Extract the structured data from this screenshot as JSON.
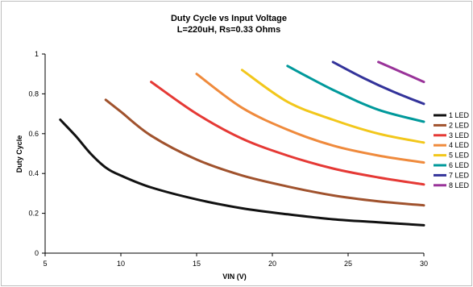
{
  "chart_data": {
    "type": "line",
    "title": "Duty Cycle vs Input Voltage",
    "subtitle": "L=220uH, Rs=0.33 Ohms",
    "xlabel": "VIN (V)",
    "ylabel": "Duty Cycle",
    "xlim": [
      5,
      30
    ],
    "ylim": [
      0,
      1
    ],
    "xticks": [
      "5",
      "10",
      "15",
      "20",
      "25",
      "30"
    ],
    "yticks": [
      "0",
      "0.2",
      "0.4",
      "0.6",
      "0.8",
      "1"
    ],
    "grid": false,
    "legend_position": "right",
    "series": [
      {
        "name": "1 LED",
        "color": "#111111",
        "x": [
          6,
          7,
          8,
          9,
          10,
          12,
          15,
          18,
          21,
          24,
          27,
          30
        ],
        "y": [
          0.67,
          0.59,
          0.5,
          0.43,
          0.39,
          0.33,
          0.27,
          0.225,
          0.195,
          0.17,
          0.155,
          0.14
        ]
      },
      {
        "name": "2 LED",
        "color": "#a0522d",
        "x": [
          9,
          10,
          12,
          15,
          18,
          21,
          24,
          27,
          30
        ],
        "y": [
          0.77,
          0.71,
          0.59,
          0.47,
          0.39,
          0.335,
          0.29,
          0.26,
          0.24
        ]
      },
      {
        "name": "3 LED",
        "color": "#e53935",
        "x": [
          12,
          15,
          18,
          21,
          24,
          27,
          30
        ],
        "y": [
          0.86,
          0.7,
          0.575,
          0.49,
          0.425,
          0.38,
          0.345
        ]
      },
      {
        "name": "4 LED",
        "color": "#ef8a3c",
        "x": [
          15,
          18,
          21,
          24,
          27,
          30
        ],
        "y": [
          0.9,
          0.73,
          0.62,
          0.54,
          0.49,
          0.455
        ]
      },
      {
        "name": "5 LED",
        "color": "#f2c71b",
        "x": [
          18,
          21,
          24,
          27,
          30
        ],
        "y": [
          0.92,
          0.76,
          0.67,
          0.6,
          0.555
        ]
      },
      {
        "name": "6 LED",
        "color": "#00999b",
        "x": [
          21,
          24,
          27,
          30
        ],
        "y": [
          0.94,
          0.82,
          0.72,
          0.66
        ]
      },
      {
        "name": "7 LED",
        "color": "#33339a",
        "x": [
          24,
          26,
          28,
          30
        ],
        "y": [
          0.96,
          0.88,
          0.81,
          0.75
        ]
      },
      {
        "name": "8 LED",
        "color": "#993399",
        "x": [
          27,
          28.5,
          30
        ],
        "y": [
          0.96,
          0.91,
          0.86
        ]
      }
    ]
  }
}
